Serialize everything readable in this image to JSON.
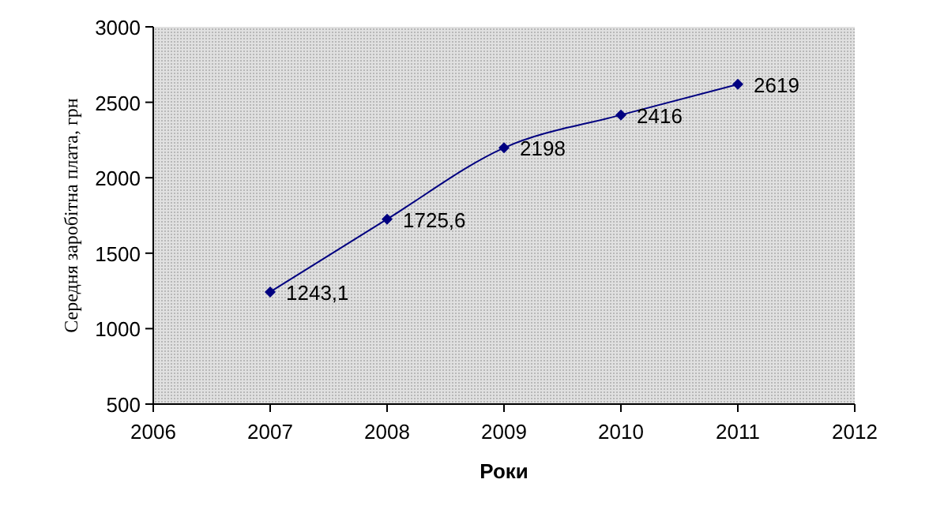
{
  "chart_data": {
    "type": "line",
    "xlabel": "Роки",
    "ylabel": "Середня заробітна плата, грн",
    "x": [
      2007,
      2008,
      2009,
      2010,
      2011
    ],
    "series": [
      {
        "color": "#000080",
        "values": [
          1243.1,
          1725.6,
          2198,
          2416,
          2619
        ],
        "value_labels": [
          "1243,1",
          "1725,6",
          "2198",
          "2416",
          "2619"
        ]
      }
    ],
    "xlim": [
      2006,
      2012
    ],
    "xticks": [
      2006,
      2007,
      2008,
      2009,
      2010,
      2011,
      2012
    ],
    "ylim": [
      500,
      3000
    ],
    "yticks": [
      500,
      1000,
      1500,
      2000,
      2500,
      3000
    ],
    "marker": "diamond"
  }
}
